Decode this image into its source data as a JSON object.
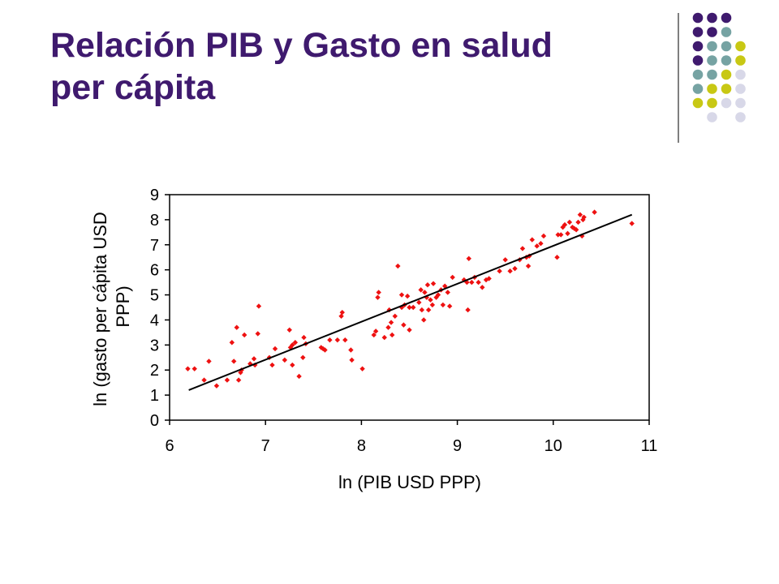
{
  "slide": {
    "title_line1": "Relación PIB y Gasto en salud",
    "title_line2": "per cápita"
  },
  "decor": {
    "palette": [
      "#3f1a6e",
      "#76a3a3",
      "#c8c814",
      "#d8d8e8"
    ],
    "grid_colors": [
      [
        "#3f1a6e",
        "#3f1a6e",
        "#3f1a6e",
        null
      ],
      [
        "#3f1a6e",
        "#3f1a6e",
        "#76a3a3",
        null
      ],
      [
        "#3f1a6e",
        "#76a3a3",
        "#76a3a3",
        "#c8c814"
      ],
      [
        "#3f1a6e",
        "#76a3a3",
        "#76a3a3",
        "#c8c814"
      ],
      [
        "#76a3a3",
        "#76a3a3",
        "#c8c814",
        "#d8d8e8"
      ],
      [
        "#76a3a3",
        "#c8c814",
        "#c8c814",
        "#d8d8e8"
      ],
      [
        "#c8c814",
        "#c8c814",
        "#d8d8e8",
        "#d8d8e8"
      ],
      [
        null,
        "#d8d8e8",
        null,
        "#d8d8e8"
      ]
    ]
  },
  "chart_data": {
    "type": "scatter",
    "title": "",
    "xlabel": "ln (PIB USD PPP)",
    "ylabel_lines": [
      "ln (gasto per cápita USD",
      "PPP)"
    ],
    "xlim": [
      6,
      11
    ],
    "ylim": [
      0,
      9
    ],
    "xticks": [
      "6",
      "7",
      "8",
      "9",
      "10",
      "11"
    ],
    "yticks": [
      "0",
      "1",
      "2",
      "3",
      "4",
      "5",
      "6",
      "7",
      "8",
      "9"
    ],
    "grid": false,
    "point_color": "#ee1111",
    "line_color": "#000000",
    "trendline": {
      "x": [
        6.2,
        10.82
      ],
      "y": [
        1.2,
        8.2
      ]
    },
    "points": [
      [
        6.19,
        2.05
      ],
      [
        6.26,
        2.05
      ],
      [
        6.36,
        1.6
      ],
      [
        6.41,
        2.35
      ],
      [
        6.49,
        1.37
      ],
      [
        6.6,
        1.6
      ],
      [
        6.65,
        3.1
      ],
      [
        6.67,
        2.35
      ],
      [
        6.7,
        3.7
      ],
      [
        6.72,
        1.6
      ],
      [
        6.74,
        1.9
      ],
      [
        6.75,
        2.0
      ],
      [
        6.78,
        3.4
      ],
      [
        6.84,
        2.25
      ],
      [
        6.88,
        2.45
      ],
      [
        6.89,
        2.2
      ],
      [
        6.92,
        3.45
      ],
      [
        6.93,
        4.55
      ],
      [
        7.04,
        2.5
      ],
      [
        7.07,
        2.2
      ],
      [
        7.1,
        2.85
      ],
      [
        7.2,
        2.4
      ],
      [
        7.25,
        3.6
      ],
      [
        7.26,
        2.9
      ],
      [
        7.28,
        3.0
      ],
      [
        7.28,
        2.2
      ],
      [
        7.31,
        3.1
      ],
      [
        7.35,
        1.75
      ],
      [
        7.39,
        2.5
      ],
      [
        7.4,
        3.3
      ],
      [
        7.42,
        3.05
      ],
      [
        7.58,
        2.9
      ],
      [
        7.6,
        2.85
      ],
      [
        7.62,
        2.8
      ],
      [
        7.67,
        3.2
      ],
      [
        7.75,
        3.2
      ],
      [
        7.79,
        4.15
      ],
      [
        7.8,
        4.3
      ],
      [
        7.83,
        3.2
      ],
      [
        7.89,
        2.8
      ],
      [
        7.9,
        2.4
      ],
      [
        8.01,
        2.05
      ],
      [
        8.13,
        3.4
      ],
      [
        8.15,
        3.55
      ],
      [
        8.17,
        4.9
      ],
      [
        8.18,
        5.1
      ],
      [
        8.24,
        3.3
      ],
      [
        8.28,
        3.7
      ],
      [
        8.29,
        4.4
      ],
      [
        8.31,
        3.9
      ],
      [
        8.32,
        3.4
      ],
      [
        8.35,
        4.15
      ],
      [
        8.38,
        6.15
      ],
      [
        8.42,
        5.0
      ],
      [
        8.42,
        4.5
      ],
      [
        8.44,
        3.8
      ],
      [
        8.45,
        4.6
      ],
      [
        8.48,
        4.95
      ],
      [
        8.5,
        4.5
      ],
      [
        8.5,
        3.6
      ],
      [
        8.54,
        4.5
      ],
      [
        8.6,
        4.7
      ],
      [
        8.62,
        5.2
      ],
      [
        8.63,
        4.4
      ],
      [
        8.65,
        4.0
      ],
      [
        8.66,
        5.1
      ],
      [
        8.68,
        4.9
      ],
      [
        8.69,
        5.4
      ],
      [
        8.7,
        4.4
      ],
      [
        8.72,
        4.8
      ],
      [
        8.74,
        4.6
      ],
      [
        8.75,
        5.45
      ],
      [
        8.78,
        4.9
      ],
      [
        8.8,
        5.0
      ],
      [
        8.83,
        5.2
      ],
      [
        8.85,
        4.6
      ],
      [
        8.87,
        5.35
      ],
      [
        8.9,
        5.1
      ],
      [
        8.92,
        4.55
      ],
      [
        8.95,
        5.7
      ],
      [
        9.07,
        5.6
      ],
      [
        9.1,
        5.5
      ],
      [
        9.11,
        4.4
      ],
      [
        9.12,
        6.45
      ],
      [
        9.15,
        5.5
      ],
      [
        9.18,
        5.7
      ],
      [
        9.22,
        5.5
      ],
      [
        9.26,
        5.3
      ],
      [
        9.3,
        5.6
      ],
      [
        9.33,
        5.65
      ],
      [
        9.44,
        5.95
      ],
      [
        9.5,
        6.4
      ],
      [
        9.55,
        5.95
      ],
      [
        9.6,
        6.05
      ],
      [
        9.65,
        6.4
      ],
      [
        9.68,
        6.85
      ],
      [
        9.72,
        6.5
      ],
      [
        9.74,
        6.15
      ],
      [
        9.75,
        6.55
      ],
      [
        9.78,
        7.2
      ],
      [
        9.83,
        6.95
      ],
      [
        9.87,
        7.05
      ],
      [
        9.9,
        7.35
      ],
      [
        10.04,
        6.5
      ],
      [
        10.05,
        7.4
      ],
      [
        10.08,
        7.4
      ],
      [
        10.1,
        7.7
      ],
      [
        10.12,
        7.8
      ],
      [
        10.15,
        7.45
      ],
      [
        10.17,
        7.9
      ],
      [
        10.2,
        7.7
      ],
      [
        10.22,
        7.65
      ],
      [
        10.24,
        7.6
      ],
      [
        10.26,
        7.9
      ],
      [
        10.28,
        8.2
      ],
      [
        10.3,
        7.35
      ],
      [
        10.31,
        8.0
      ],
      [
        10.32,
        8.1
      ],
      [
        10.43,
        8.3
      ],
      [
        10.82,
        7.85
      ]
    ]
  }
}
